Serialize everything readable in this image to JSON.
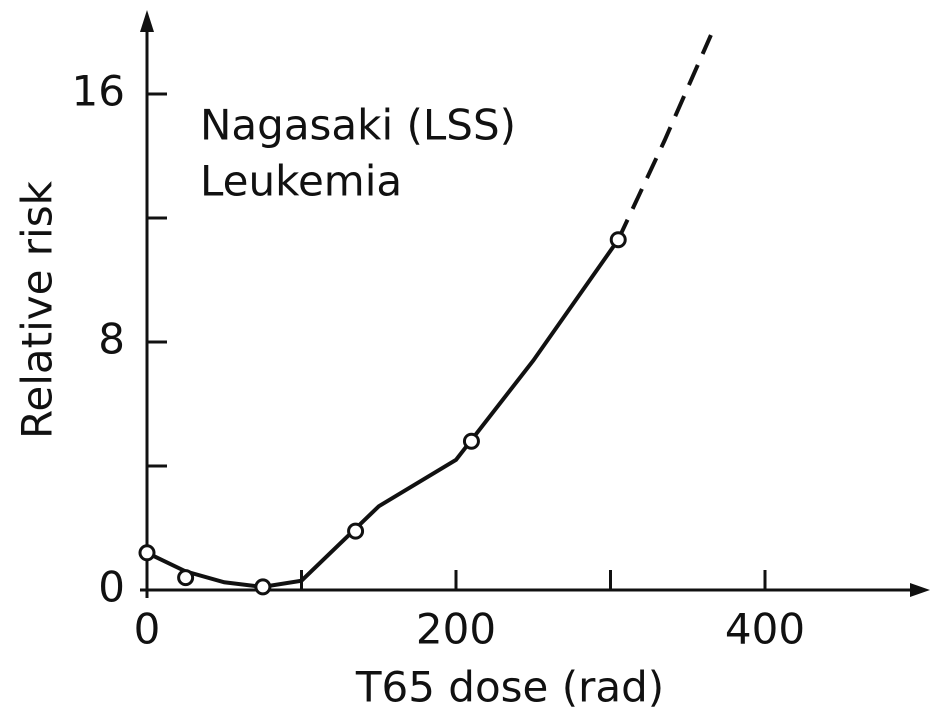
{
  "chart_data": {
    "type": "scatter",
    "annotations": [
      "Nagasaki (LSS)",
      "Leukemia"
    ],
    "x_label": "T65 dose (rad)",
    "y_label": "Relative risk",
    "xlim": [
      0,
      500
    ],
    "ylim": [
      0,
      18
    ],
    "xticks": [
      0,
      200,
      400
    ],
    "xminorticks": [
      100,
      300
    ],
    "yticks": [
      0,
      8,
      16
    ],
    "yminorticks": [
      4,
      12
    ],
    "color": "#111111",
    "points": {
      "x": [
        0,
        25,
        75,
        135,
        210,
        305
      ],
      "y": [
        1.2,
        0.4,
        0.1,
        1.9,
        4.8,
        11.3
      ]
    },
    "curve": {
      "x": [
        0,
        25,
        50,
        75,
        100,
        150,
        200,
        250,
        305
      ],
      "y": [
        1.2,
        0.6,
        0.25,
        0.1,
        0.3,
        2.7,
        4.2,
        7.4,
        11.3
      ]
    },
    "extrapolation": {
      "x": [
        305,
        335,
        365
      ],
      "y": [
        11.3,
        14.5,
        17.9
      ],
      "dashed": true
    }
  }
}
